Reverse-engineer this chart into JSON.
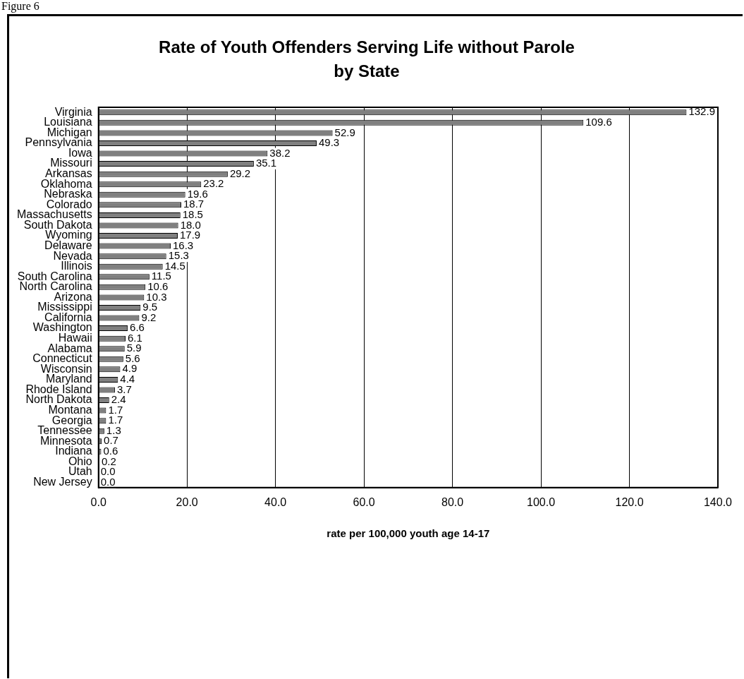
{
  "chart_data": {
    "type": "bar",
    "orientation": "horizontal",
    "title": "Rate of Youth Offenders Serving Life without Parole by State",
    "xlabel": "rate per 100,000 youth age 14-17",
    "annotations": [
      "Figure 6"
    ],
    "categories": [
      "Virginia",
      "Louisiana",
      "Michigan",
      "Pennsylvania",
      "Iowa",
      "Missouri",
      "Arkansas",
      "Oklahoma",
      "Nebraska",
      "Colorado",
      "Massachusetts",
      "South Dakota",
      "Wyoming",
      "Delaware",
      "Nevada",
      "Illinois",
      "South Carolina",
      "North Carolina",
      "Arizona",
      "Mississippi",
      "California",
      "Washington",
      "Hawaii",
      "Alabama",
      "Connecticut",
      "Wisconsin",
      "Maryland",
      "Rhode Island",
      "North Dakota",
      "Montana",
      "Georgia",
      "Tennessee",
      "Minnesota",
      "Indiana",
      "Ohio",
      "Utah",
      "New Jersey"
    ],
    "values": [
      132.9,
      109.6,
      52.9,
      49.3,
      38.2,
      35.1,
      29.2,
      23.2,
      19.6,
      18.7,
      18.5,
      18.0,
      17.9,
      16.3,
      15.3,
      14.5,
      11.5,
      10.6,
      10.3,
      9.5,
      9.2,
      6.6,
      6.1,
      5.9,
      5.6,
      4.9,
      4.4,
      3.7,
      2.4,
      1.7,
      1.7,
      1.3,
      0.7,
      0.6,
      0.2,
      0.0,
      0.0
    ],
    "value_labels": [
      "132.9",
      "109.6",
      "52.9",
      "49.3",
      "38.2",
      "35.1",
      "29.2",
      "23.2",
      "19.6",
      "18.7",
      "18.5",
      "18.0",
      "17.9",
      "16.3",
      "15.3",
      "14.5",
      "11.5",
      "10.6",
      "10.3",
      "9.5",
      "9.2",
      "6.6",
      "6.1",
      "5.9",
      "5.6",
      "4.9",
      "4.4",
      "3.7",
      "2.4",
      "1.7",
      "1.7",
      "1.3",
      "0.7",
      "0.6",
      "0.2",
      "0.0",
      "0.0"
    ],
    "color": "#808080",
    "xlim": [
      0,
      140
    ],
    "xticks": [
      {
        "value": 0,
        "label": "0.0"
      },
      {
        "value": 20,
        "label": "20.0"
      },
      {
        "value": 40,
        "label": "40.0"
      },
      {
        "value": 60,
        "label": "60.0"
      },
      {
        "value": 80,
        "label": "80.0"
      },
      {
        "value": 100,
        "label": "100.0"
      },
      {
        "value": 120,
        "label": "120.0"
      },
      {
        "value": 140,
        "label": "140.0"
      }
    ],
    "grid": "x",
    "legend": false
  }
}
